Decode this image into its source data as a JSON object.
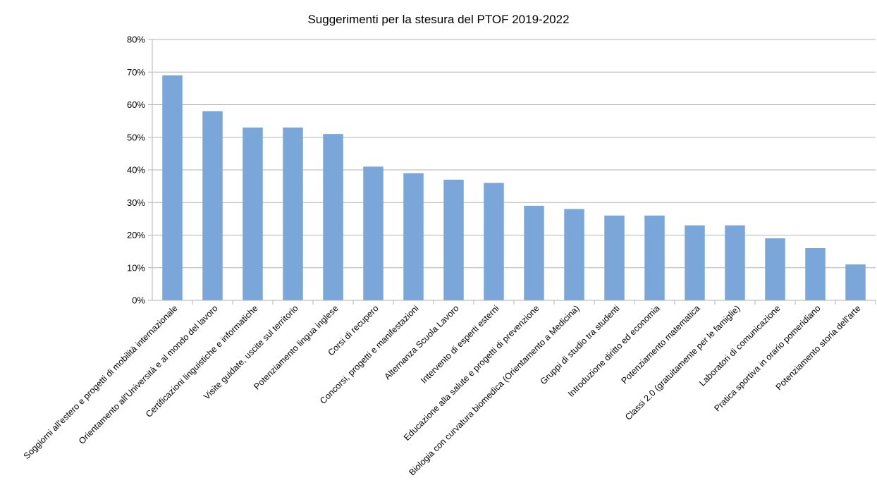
{
  "chart_data": {
    "type": "bar",
    "title": "Suggerimenti per la stesura del PTOF 2019-2022",
    "xlabel": "",
    "ylabel": "",
    "ylim": [
      0,
      80
    ],
    "yticks": [
      "0%",
      "10%",
      "20%",
      "30%",
      "40%",
      "50%",
      "60%",
      "70%",
      "80%"
    ],
    "grid": true,
    "legend": "none",
    "bar_color": "#7aa6da",
    "categories": [
      "Soggiorni all'estero e progetti di mobilità internazionale",
      "Orientamento all'Università e al mondo del lavoro",
      "Certificazioni linguistiche e informatiche",
      "Visite guidate, uscite sul territorio",
      "Potenziamento lingua inglese",
      "Corsi di recupero",
      "Concorsi, progetti e manifestazioni",
      "Alternanza Scuola Lavoro",
      "Intervento di esperti esterni",
      "Educazione alla salute e progetti di prevenzione",
      "Biologia con curvatura biomedica (Orientamento a Medicina)",
      "Gruppi di studio tra studenti",
      "Introduzione diritto ed economia",
      "Potenziamento matematica",
      "Classi 2.0 (gratuitamente per le famiglie)",
      "Laboratori di comunicazione",
      "Pratica sportiva in orario pomeridiano",
      "Potenziamento storia dell'arte"
    ],
    "values": [
      69,
      58,
      53,
      53,
      51,
      41,
      39,
      37,
      36,
      29,
      28,
      26,
      26,
      23,
      23,
      19,
      16,
      11
    ]
  }
}
